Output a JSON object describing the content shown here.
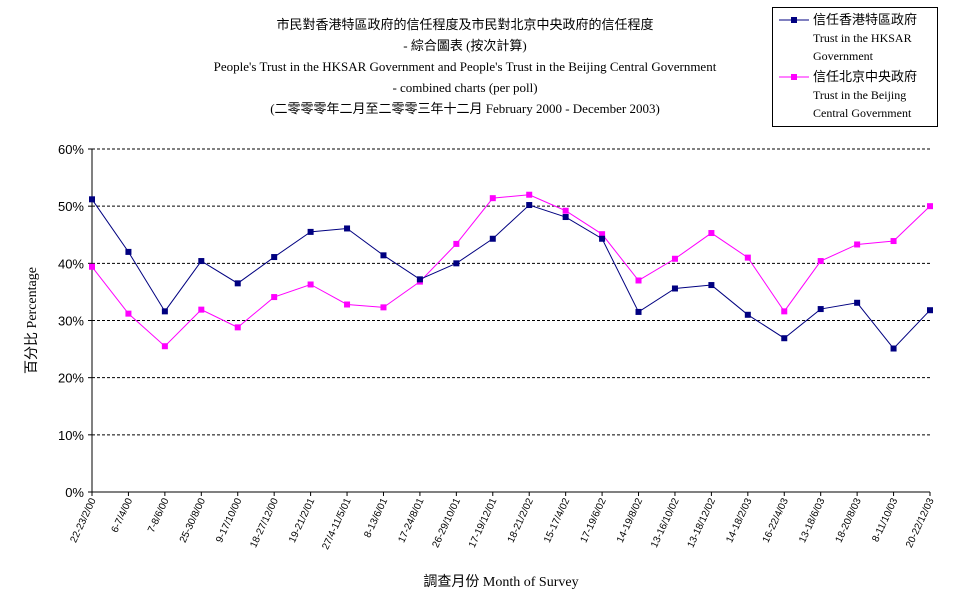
{
  "title": {
    "line1": "市民對香港特區政府的信任程度及市民對北京中央政府的信任程度",
    "line2": "- 綜合圖表 (按次計算)",
    "line3": "People's Trust in the HKSAR Government and People's Trust in the Beijing Central Government",
    "line4": "- combined charts (per poll)",
    "line5": "(二零零零年二月至二零零三年十二月 February 2000 - December 2003)"
  },
  "legend": {
    "hksar": {
      "zh": "信任香港特區政府",
      "en1": "Trust in the HKSAR",
      "en2": "Government",
      "color": "#000080"
    },
    "beijing": {
      "zh": "信任北京中央政府",
      "en1": "Trust in the Beijing",
      "en2": "Central Government",
      "color": "#ff00ff"
    }
  },
  "chart_data": {
    "type": "line",
    "ylabel": "百分比 Percentage",
    "xlabel": "調查月份 Month of Survey",
    "ylim": [
      0,
      60
    ],
    "ytick_values": [
      0,
      10,
      20,
      30,
      40,
      50,
      60
    ],
    "ytick_labels": [
      "0%",
      "10%",
      "20%",
      "30%",
      "40%",
      "50%",
      "60%"
    ],
    "grid": true,
    "legend_position": "top-right",
    "categories": [
      "22-23/2/00",
      "6-7/4/00",
      "7-8/6/00",
      "25-30/8/00",
      "9-17/10/00",
      "18-27/12/00",
      "19-21/2/01",
      "27/4-11/5/01",
      "8-13/6/01",
      "17-24/8/01",
      "26-29/10/01",
      "17-19/12/01",
      "18-21/2/02",
      "15-17/4/02",
      "17-19/6/02",
      "14-19/8/02",
      "13-16/10/02",
      "13-18/12/02",
      "14-18/2/03",
      "16-22/4/03",
      "13-18/6/03",
      "18-20/8/03",
      "8-11/10/03",
      "20-22/12/03"
    ],
    "series": [
      {
        "name": "信任香港特區政府 Trust in the HKSAR Government",
        "color": "#000080",
        "values": [
          51.2,
          42.0,
          31.6,
          40.4,
          36.5,
          41.1,
          45.5,
          46.1,
          41.4,
          37.2,
          40.0,
          44.3,
          50.2,
          48.1,
          44.3,
          31.5,
          35.6,
          36.2,
          31.0,
          26.9,
          32.0,
          33.1,
          25.1,
          31.8
        ]
      },
      {
        "name": "信任北京中央政府 Trust in the Beijing Central Government",
        "color": "#ff00ff",
        "values": [
          39.4,
          31.2,
          25.5,
          31.9,
          28.8,
          34.1,
          36.3,
          32.8,
          32.3,
          36.8,
          43.4,
          51.4,
          52.0,
          49.2,
          45.1,
          37.0,
          40.8,
          45.3,
          41.0,
          31.6,
          40.4,
          43.3,
          43.9,
          50.0
        ]
      }
    ]
  }
}
